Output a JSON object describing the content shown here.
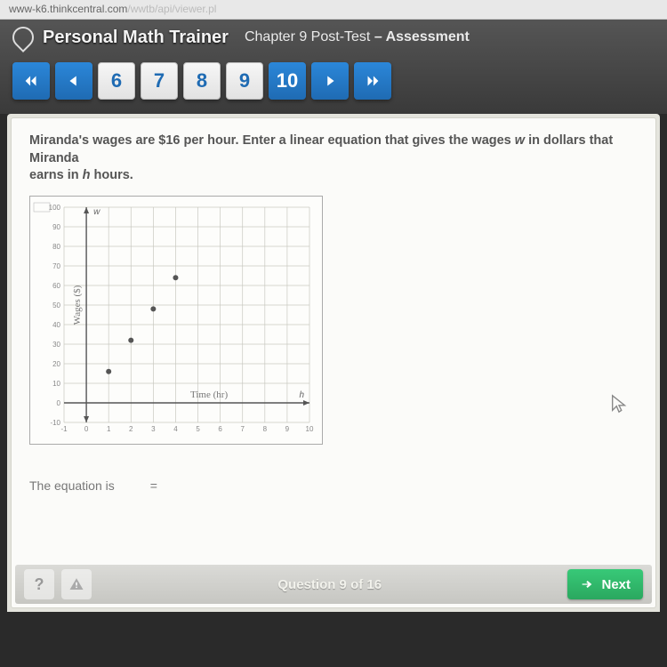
{
  "browser": {
    "url_visible": "www-k6.thinkcentral.com",
    "url_faded": "/wwtb/api/viewer.pl"
  },
  "header": {
    "app_title": "Personal Math Trainer",
    "chapter_prefix": "Chapter 9 Post-Test",
    "chapter_suffix": " – Assessment"
  },
  "nav": {
    "pages": [
      "6",
      "7",
      "8",
      "9",
      "10"
    ],
    "current": "10"
  },
  "question": {
    "line1a": "Miranda's wages are $16 per hour. Enter a linear equation that gives the wages ",
    "var_w": "w",
    "line1b": " in dollars that Miranda",
    "line2a": "earns in ",
    "var_h": "h",
    "line2b": " hours."
  },
  "chart": {
    "type": "scatter",
    "xlabel": "Time (hr)",
    "ylabel": "Wages ($)",
    "y_axis_symbol": "w",
    "x_axis_symbol": "h",
    "xlim": [
      -1,
      10
    ],
    "ylim": [
      -10,
      100
    ],
    "xtick_labels": [
      "-1",
      "0",
      "1",
      "2",
      "3",
      "4",
      "5",
      "6",
      "7",
      "8",
      "9",
      "10"
    ],
    "ytick_labels": [
      "-10",
      "0",
      "10",
      "20",
      "30",
      "40",
      "50",
      "60",
      "70",
      "80",
      "90",
      "100"
    ],
    "xtick_values": [
      -1,
      0,
      1,
      2,
      3,
      4,
      5,
      6,
      7,
      8,
      9,
      10
    ],
    "ytick_values": [
      -10,
      0,
      10,
      20,
      30,
      40,
      50,
      60,
      70,
      80,
      90,
      100
    ],
    "points": [
      {
        "x": 1,
        "y": 16
      },
      {
        "x": 2,
        "y": 32
      },
      {
        "x": 3,
        "y": 48
      },
      {
        "x": 4,
        "y": 64
      }
    ],
    "grid_color": "#c8c8c0",
    "axis_color": "#555",
    "tick_font_size": 8,
    "label_font_size": 11,
    "point_color": "#555",
    "point_radius": 3,
    "background_color": "#fdfdfb"
  },
  "equation": {
    "label": "The equation is",
    "equals": "="
  },
  "footer": {
    "help": "?",
    "q_text": "Question 9 of 16",
    "next": "Next"
  }
}
